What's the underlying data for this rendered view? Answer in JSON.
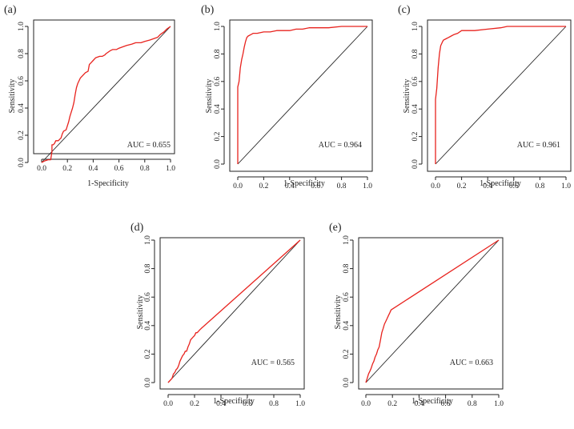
{
  "chart_data": [
    {
      "panel": "(a)",
      "type": "line",
      "xlabel": "1-Specificity",
      "ylabel": "Sensitivity",
      "xlim": [
        0,
        1
      ],
      "ylim": [
        0,
        1
      ],
      "xticks": [
        "0.0",
        "0.2",
        "0.4",
        "0.6",
        "0.8",
        "1.0"
      ],
      "yticks": [
        "0.0",
        "0.2",
        "0.4",
        "0.6",
        "0.8",
        "1.0"
      ],
      "auc_label": "AUC = 0.655",
      "series": [
        {
          "name": "ROC",
          "color": "#e8231e",
          "x": [
            0,
            0.02,
            0.05,
            0.07,
            0.08,
            0.08,
            0.09,
            0.1,
            0.11,
            0.13,
            0.14,
            0.15,
            0.16,
            0.17,
            0.19,
            0.2,
            0.21,
            0.22,
            0.23,
            0.24,
            0.25,
            0.26,
            0.27,
            0.28,
            0.29,
            0.3,
            0.32,
            0.34,
            0.36,
            0.37,
            0.38,
            0.4,
            0.42,
            0.45,
            0.47,
            0.49,
            0.5,
            0.53,
            0.55,
            0.58,
            0.6,
            0.63,
            0.66,
            0.7,
            0.73,
            0.77,
            0.8,
            0.84,
            0.87,
            0.9,
            0.92,
            0.95,
            0.97,
            1.0
          ],
          "y": [
            0,
            0.01,
            0.02,
            0.02,
            0.08,
            0.13,
            0.13,
            0.14,
            0.16,
            0.16,
            0.17,
            0.18,
            0.21,
            0.23,
            0.24,
            0.27,
            0.3,
            0.34,
            0.37,
            0.4,
            0.44,
            0.5,
            0.55,
            0.58,
            0.6,
            0.62,
            0.64,
            0.66,
            0.67,
            0.72,
            0.73,
            0.75,
            0.77,
            0.78,
            0.78,
            0.79,
            0.8,
            0.82,
            0.83,
            0.83,
            0.84,
            0.85,
            0.86,
            0.87,
            0.88,
            0.88,
            0.89,
            0.9,
            0.91,
            0.92,
            0.94,
            0.96,
            0.98,
            1.0
          ]
        }
      ]
    },
    {
      "panel": "(b)",
      "type": "line",
      "xlabel": "1-Specificity",
      "ylabel": "Sensitivity",
      "xlim": [
        0,
        1
      ],
      "ylim": [
        0,
        1
      ],
      "xticks": [
        "0.0",
        "0.2",
        "0.4",
        "0.6",
        "0.8",
        "1.0"
      ],
      "yticks": [
        "0.0",
        "0.2",
        "0.4",
        "0.6",
        "0.8",
        "1.0"
      ],
      "auc_label": "AUC = 0.964",
      "series": [
        {
          "name": "ROC",
          "color": "#e8231e",
          "x": [
            0,
            0,
            0.01,
            0.02,
            0.03,
            0.04,
            0.05,
            0.06,
            0.07,
            0.08,
            0.1,
            0.12,
            0.15,
            0.2,
            0.25,
            0.3,
            0.35,
            0.4,
            0.45,
            0.5,
            0.55,
            0.6,
            0.7,
            0.8,
            0.9,
            1.0
          ],
          "y": [
            0,
            0.56,
            0.6,
            0.7,
            0.76,
            0.8,
            0.85,
            0.89,
            0.92,
            0.93,
            0.94,
            0.95,
            0.95,
            0.96,
            0.96,
            0.97,
            0.97,
            0.97,
            0.98,
            0.98,
            0.99,
            0.99,
            0.99,
            1.0,
            1.0,
            1.0
          ]
        }
      ]
    },
    {
      "panel": "(c)",
      "type": "line",
      "xlabel": "1-Specificity",
      "ylabel": "Sensitivity",
      "xlim": [
        0,
        1
      ],
      "ylim": [
        0,
        1
      ],
      "xticks": [
        "0.0",
        "0.2",
        "0.4",
        "0.6",
        "0.8",
        "1.0"
      ],
      "yticks": [
        "0.0",
        "0.2",
        "0.4",
        "0.6",
        "0.8",
        "1.0"
      ],
      "auc_label": "AUC = 0.961",
      "series": [
        {
          "name": "ROC",
          "color": "#e8231e",
          "x": [
            0,
            0,
            0.01,
            0.02,
            0.03,
            0.04,
            0.05,
            0.06,
            0.08,
            0.1,
            0.12,
            0.14,
            0.17,
            0.2,
            0.3,
            0.4,
            0.5,
            0.55,
            0.6,
            0.8,
            1.0
          ],
          "y": [
            0,
            0.47,
            0.55,
            0.7,
            0.8,
            0.86,
            0.88,
            0.9,
            0.91,
            0.92,
            0.93,
            0.94,
            0.95,
            0.97,
            0.97,
            0.98,
            0.99,
            1.0,
            1.0,
            1.0,
            1.0
          ]
        }
      ]
    },
    {
      "panel": "(d)",
      "type": "line",
      "xlabel": "1-Specificity",
      "ylabel": "Sensitivity",
      "xlim": [
        0,
        1
      ],
      "ylim": [
        0,
        1
      ],
      "xticks": [
        "0.0",
        "0.2",
        "0.4",
        "0.6",
        "0.8",
        "1.0"
      ],
      "yticks": [
        "0.0",
        "0.2",
        "0.4",
        "0.6",
        "0.8",
        "1.0"
      ],
      "auc_label": "AUC = 0.565",
      "series": [
        {
          "name": "ROC",
          "color": "#e8231e",
          "x": [
            0,
            0.02,
            0.03,
            0.04,
            0.05,
            0.06,
            0.07,
            0.08,
            0.09,
            0.1,
            0.11,
            0.12,
            0.13,
            0.14,
            0.15,
            0.16,
            0.17,
            0.18,
            0.19,
            0.2,
            0.21,
            0.22,
            0.23,
            0.24,
            0.25,
            1.0
          ],
          "y": [
            0,
            0.02,
            0.03,
            0.06,
            0.07,
            0.09,
            0.1,
            0.12,
            0.15,
            0.17,
            0.19,
            0.2,
            0.22,
            0.22,
            0.25,
            0.27,
            0.3,
            0.31,
            0.32,
            0.33,
            0.35,
            0.35,
            0.36,
            0.37,
            0.38,
            1.0
          ]
        }
      ]
    },
    {
      "panel": "(e)",
      "type": "line",
      "xlabel": "1-Specificity",
      "ylabel": "Sensitivity",
      "xlim": [
        0,
        1
      ],
      "ylim": [
        0,
        1
      ],
      "xticks": [
        "0.0",
        "0.2",
        "0.4",
        "0.6",
        "0.8",
        "1.0"
      ],
      "yticks": [
        "0.0",
        "0.2",
        "0.4",
        "0.6",
        "0.8",
        "1.0"
      ],
      "auc_label": "AUC = 0.663",
      "series": [
        {
          "name": "ROC",
          "color": "#e8231e",
          "x": [
            0,
            0.01,
            0.02,
            0.03,
            0.04,
            0.05,
            0.06,
            0.07,
            0.08,
            0.09,
            0.1,
            0.11,
            0.12,
            0.13,
            0.14,
            0.15,
            0.16,
            0.17,
            0.18,
            0.19,
            1.0
          ],
          "y": [
            0,
            0.03,
            0.06,
            0.08,
            0.1,
            0.13,
            0.15,
            0.18,
            0.2,
            0.23,
            0.25,
            0.3,
            0.35,
            0.38,
            0.41,
            0.43,
            0.45,
            0.47,
            0.49,
            0.51,
            1.0
          ]
        }
      ]
    }
  ]
}
